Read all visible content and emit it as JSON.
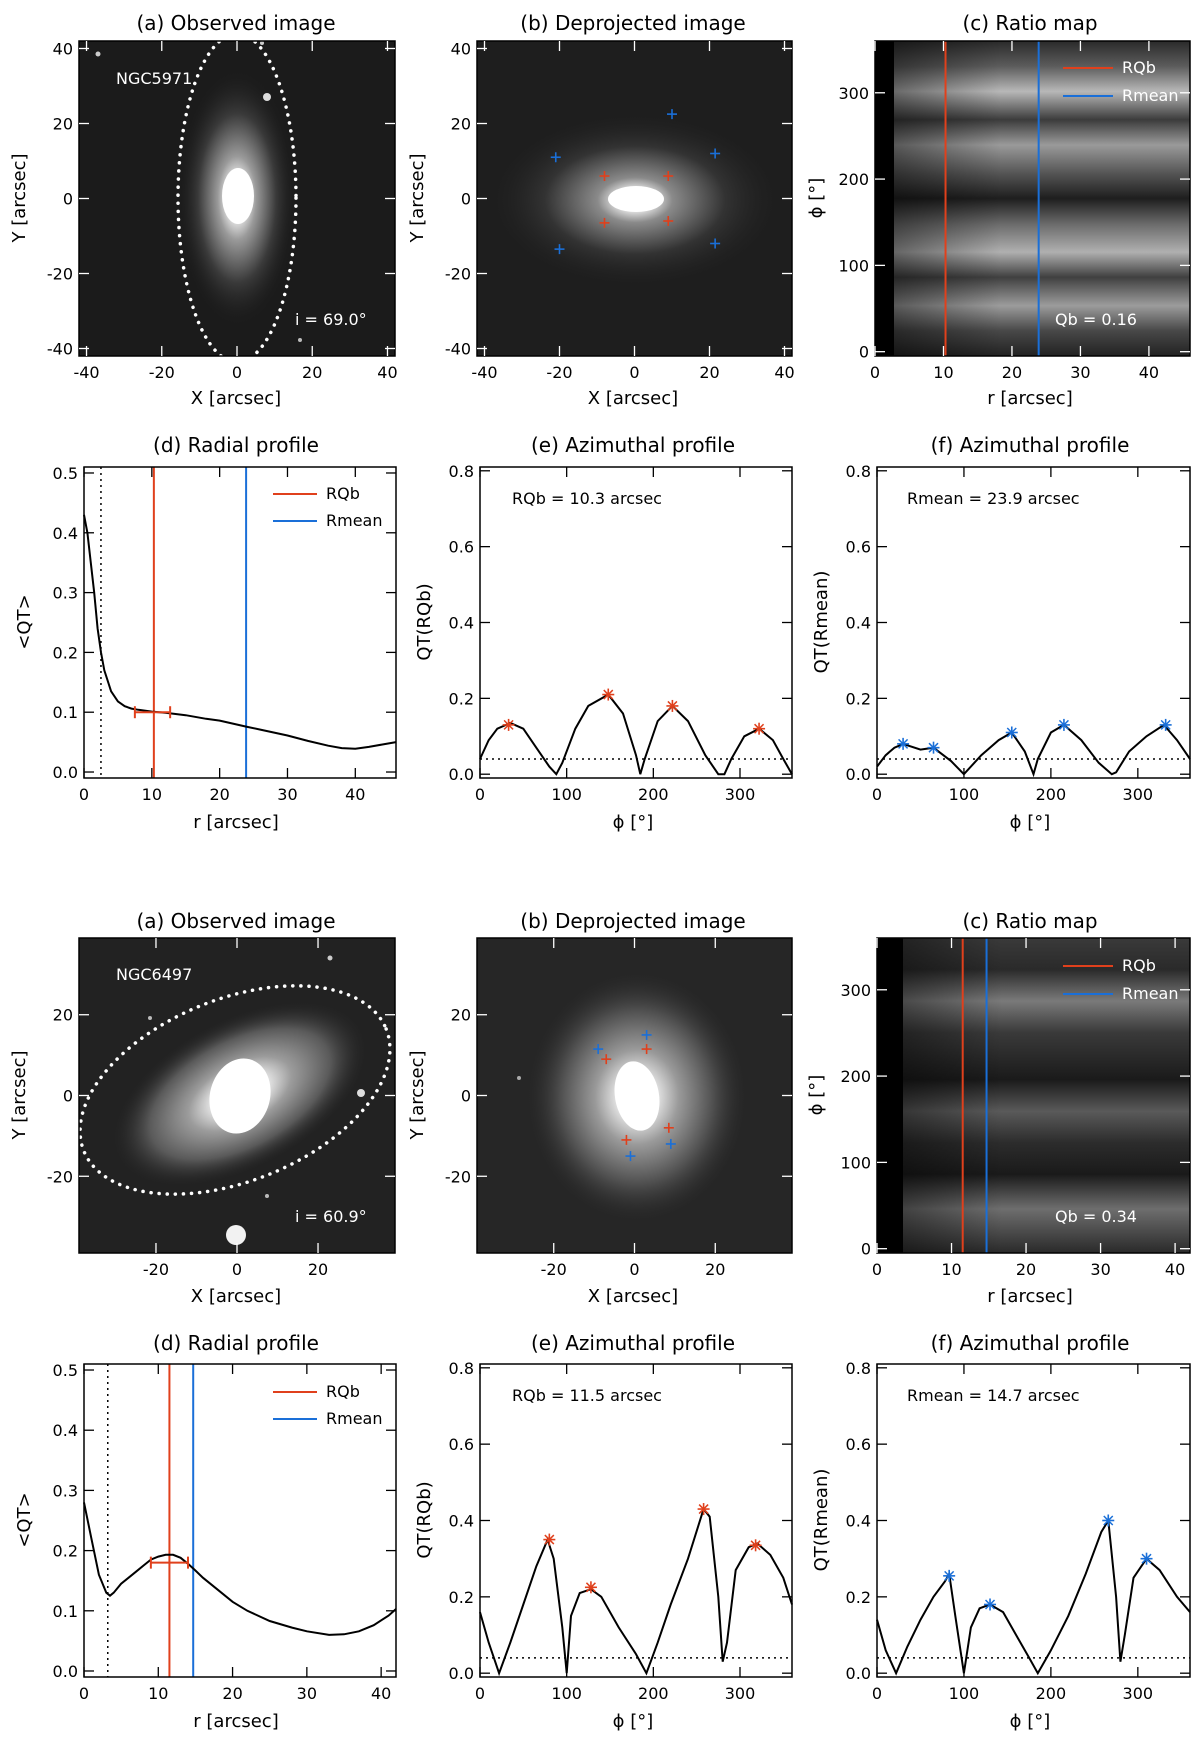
{
  "colors": {
    "rqb": "#e0401c",
    "rmean": "#1a6fd8",
    "line": "#000000"
  },
  "labels": {
    "x_arcsec": "X [arcsec]",
    "y_arcsec": "Y [arcsec]",
    "r_arcsec": "r [arcsec]",
    "phi_deg": "ϕ [°]",
    "qt_mean": "<QT>",
    "qt_rqb": "QT(RQb)",
    "qt_rmean": "QT(Rmean)",
    "legend_rqb": "RQb",
    "legend_rmean": "Rmean"
  },
  "chart_data": [
    {
      "galaxy": "NGC5971",
      "inclination_text": "i =   69.0°",
      "qb_text": "Qb =   0.16",
      "rqb_text": "RQb = 10.3 arcsec",
      "rmean_text": "Rmean = 23.9 arcsec",
      "panels": {
        "a": {
          "title": "(a) Observed image",
          "type": "heatmap",
          "xlim": [
            -42,
            42
          ],
          "ylim": [
            -42,
            42
          ],
          "xticks": [
            -40,
            -20,
            0,
            20,
            40
          ],
          "yticks": [
            -40,
            -20,
            0,
            20,
            40
          ]
        },
        "b": {
          "title": "(b) Deprojected image",
          "type": "heatmap",
          "xlim": [
            -42,
            42
          ],
          "ylim": [
            -42,
            42
          ],
          "xticks": [
            -40,
            -20,
            0,
            20,
            40
          ],
          "yticks": [
            -40,
            -20,
            0,
            20,
            40
          ],
          "red_markers": [
            [
              -8,
              6
            ],
            [
              9,
              6
            ],
            [
              -8,
              -6.5
            ],
            [
              9,
              -6
            ]
          ],
          "blue_markers": [
            [
              10,
              22.5
            ],
            [
              21.5,
              12
            ],
            [
              -21,
              11
            ],
            [
              -20,
              -13.5
            ],
            [
              21.5,
              -12
            ]
          ]
        },
        "c": {
          "title": "(c) Ratio map",
          "type": "heatmap",
          "xlim": [
            0,
            46
          ],
          "ylim": [
            -5,
            360
          ],
          "xticks": [
            0,
            10,
            20,
            30,
            40
          ],
          "yticks": [
            0,
            100,
            200,
            300
          ],
          "rqb": 10.3,
          "rmean": 23.9
        },
        "d": {
          "title": "(d) Radial profile",
          "type": "line",
          "xlim": [
            0,
            46
          ],
          "ylim": [
            -0.01,
            0.51
          ],
          "xticks": [
            0,
            10,
            20,
            30,
            40
          ],
          "yticks": [
            0.0,
            0.1,
            0.2,
            0.3,
            0.4,
            0.5
          ],
          "x": [
            0,
            0.5,
            1,
            1.5,
            2,
            2.5,
            3,
            4,
            5,
            6,
            7,
            8,
            10,
            12,
            15,
            18,
            20,
            23.9,
            26,
            30,
            33,
            36,
            38,
            40,
            42,
            44,
            46
          ],
          "y": [
            0.43,
            0.4,
            0.35,
            0.3,
            0.24,
            0.2,
            0.17,
            0.135,
            0.118,
            0.11,
            0.106,
            0.104,
            0.101,
            0.099,
            0.095,
            0.089,
            0.086,
            0.076,
            0.071,
            0.061,
            0.052,
            0.044,
            0.04,
            0.039,
            0.042,
            0.046,
            0.05
          ],
          "dotted_x": 2.5,
          "rqb": 10.3,
          "rmean": 23.9,
          "errbar": {
            "x1": 7.5,
            "x2": 12.7,
            "y": 0.1
          }
        },
        "e": {
          "title": "(e) Azimuthal profile",
          "type": "line",
          "xlim": [
            0,
            360
          ],
          "ylim": [
            -0.01,
            0.81
          ],
          "xticks": [
            0,
            100,
            200,
            300
          ],
          "yticks": [
            0.0,
            0.2,
            0.4,
            0.6,
            0.8
          ],
          "x": [
            0,
            10,
            20,
            35,
            50,
            65,
            80,
            88,
            95,
            110,
            125,
            148,
            165,
            180,
            185,
            190,
            205,
            222,
            240,
            260,
            275,
            282,
            290,
            305,
            322,
            338,
            350,
            360
          ],
          "y": [
            0.04,
            0.09,
            0.12,
            0.135,
            0.12,
            0.07,
            0.02,
            0.0,
            0.03,
            0.12,
            0.18,
            0.21,
            0.16,
            0.05,
            0.0,
            0.04,
            0.14,
            0.18,
            0.14,
            0.05,
            0.0,
            0.0,
            0.04,
            0.1,
            0.12,
            0.09,
            0.04,
            0.0
          ],
          "peaks_x": [
            33,
            148,
            222,
            322
          ],
          "peaks_y": [
            0.13,
            0.21,
            0.18,
            0.12
          ],
          "threshold": 0.04
        },
        "f": {
          "title": "(f) Azimuthal profile",
          "type": "line",
          "xlim": [
            0,
            360
          ],
          "ylim": [
            -0.01,
            0.81
          ],
          "xticks": [
            0,
            100,
            200,
            300
          ],
          "yticks": [
            0.0,
            0.2,
            0.4,
            0.6,
            0.8
          ],
          "x": [
            0,
            10,
            20,
            30,
            50,
            65,
            85,
            100,
            120,
            140,
            155,
            170,
            180,
            185,
            200,
            215,
            235,
            255,
            270,
            275,
            290,
            310,
            330,
            345,
            360
          ],
          "y": [
            0.02,
            0.05,
            0.07,
            0.08,
            0.065,
            0.07,
            0.035,
            0.0,
            0.05,
            0.09,
            0.11,
            0.06,
            0.0,
            0.04,
            0.11,
            0.13,
            0.09,
            0.03,
            0.0,
            0.005,
            0.06,
            0.1,
            0.13,
            0.09,
            0.04
          ],
          "peaks_x": [
            30,
            65,
            155,
            215,
            332
          ],
          "peaks_y": [
            0.08,
            0.07,
            0.11,
            0.13,
            0.13
          ],
          "threshold": 0.04
        }
      }
    },
    {
      "galaxy": "NGC6497",
      "inclination_text": "i =   60.9°",
      "qb_text": "Qb =   0.34",
      "rqb_text": "RQb = 11.5 arcsec",
      "rmean_text": "Rmean = 14.7 arcsec",
      "panels": {
        "a": {
          "title": "(a) Observed image",
          "type": "heatmap",
          "xlim": [
            -39,
            39
          ],
          "ylim": [
            -39,
            39
          ],
          "xticks": [
            -20,
            0,
            20
          ],
          "yticks": [
            -20,
            0,
            20
          ]
        },
        "b": {
          "title": "(b) Deprojected image",
          "type": "heatmap",
          "xlim": [
            -39,
            39
          ],
          "ylim": [
            -39,
            39
          ],
          "xticks": [
            -20,
            0,
            20
          ],
          "yticks": [
            -20,
            0,
            20
          ],
          "red_markers": [
            [
              -7,
              9
            ],
            [
              3,
              11.5
            ],
            [
              -2,
              -11
            ],
            [
              8.5,
              -8
            ]
          ],
          "blue_markers": [
            [
              -9,
              11.5
            ],
            [
              3,
              15
            ],
            [
              -1,
              -15
            ],
            [
              9,
              -12
            ]
          ]
        },
        "c": {
          "title": "(c) Ratio map",
          "type": "heatmap",
          "xlim": [
            0,
            42
          ],
          "ylim": [
            -5,
            360
          ],
          "xticks": [
            0,
            10,
            20,
            30,
            40
          ],
          "yticks": [
            0,
            100,
            200,
            300
          ],
          "rqb": 11.5,
          "rmean": 14.7
        },
        "d": {
          "title": "(d) Radial profile",
          "type": "line",
          "xlim": [
            0,
            42
          ],
          "ylim": [
            -0.01,
            0.51
          ],
          "xticks": [
            0,
            10,
            20,
            30,
            40
          ],
          "yticks": [
            0.0,
            0.1,
            0.2,
            0.3,
            0.4,
            0.5
          ],
          "x": [
            0,
            1,
            2,
            3,
            3.5,
            4,
            5,
            6,
            7,
            8,
            9,
            10,
            11,
            12,
            13,
            14,
            15,
            16,
            18,
            20,
            22,
            25,
            28,
            30,
            33,
            35,
            37,
            39,
            41,
            42
          ],
          "y": [
            0.28,
            0.22,
            0.16,
            0.13,
            0.125,
            0.13,
            0.145,
            0.155,
            0.165,
            0.175,
            0.185,
            0.19,
            0.193,
            0.193,
            0.188,
            0.178,
            0.167,
            0.155,
            0.135,
            0.115,
            0.1,
            0.083,
            0.072,
            0.066,
            0.06,
            0.061,
            0.066,
            0.076,
            0.092,
            0.103
          ],
          "dotted_x": 3.2,
          "rqb": 11.5,
          "rmean": 14.7,
          "errbar": {
            "x1": 9.0,
            "x2": 14.0,
            "y": 0.18
          }
        },
        "e": {
          "title": "(e) Azimuthal profile",
          "type": "line",
          "xlim": [
            0,
            360
          ],
          "ylim": [
            -0.01,
            0.81
          ],
          "xticks": [
            0,
            100,
            200,
            300
          ],
          "yticks": [
            0.0,
            0.2,
            0.4,
            0.6,
            0.8
          ],
          "x": [
            0,
            10,
            22,
            35,
            50,
            65,
            78,
            85,
            95,
            100,
            105,
            115,
            128,
            140,
            160,
            180,
            192,
            205,
            220,
            240,
            258,
            265,
            275,
            280,
            285,
            295,
            310,
            320,
            335,
            350,
            360
          ],
          "y": [
            0.16,
            0.08,
            0.0,
            0.08,
            0.18,
            0.28,
            0.35,
            0.3,
            0.12,
            0.0,
            0.15,
            0.21,
            0.22,
            0.2,
            0.12,
            0.05,
            0.0,
            0.08,
            0.18,
            0.3,
            0.43,
            0.41,
            0.2,
            0.03,
            0.08,
            0.27,
            0.33,
            0.34,
            0.31,
            0.25,
            0.18
          ],
          "peaks_x": [
            80,
            128,
            258,
            318
          ],
          "peaks_y": [
            0.35,
            0.225,
            0.43,
            0.335
          ],
          "threshold": 0.04
        },
        "f": {
          "title": "(f) Azimuthal profile",
          "type": "line",
          "xlim": [
            0,
            360
          ],
          "ylim": [
            -0.01,
            0.81
          ],
          "xticks": [
            0,
            100,
            200,
            300
          ],
          "yticks": [
            0.0,
            0.2,
            0.4,
            0.6,
            0.8
          ],
          "x": [
            0,
            10,
            22,
            35,
            50,
            65,
            78,
            83,
            90,
            100,
            108,
            118,
            130,
            145,
            160,
            175,
            185,
            200,
            220,
            240,
            258,
            266,
            275,
            280,
            285,
            295,
            310,
            325,
            345,
            360
          ],
          "y": [
            0.14,
            0.06,
            0.0,
            0.07,
            0.14,
            0.2,
            0.24,
            0.26,
            0.15,
            0.0,
            0.12,
            0.17,
            0.18,
            0.16,
            0.1,
            0.04,
            0.0,
            0.06,
            0.15,
            0.26,
            0.37,
            0.4,
            0.2,
            0.03,
            0.1,
            0.25,
            0.3,
            0.27,
            0.2,
            0.16
          ],
          "peaks_x": [
            83,
            130,
            266,
            310
          ],
          "peaks_y": [
            0.255,
            0.18,
            0.4,
            0.3
          ],
          "threshold": 0.04
        }
      }
    }
  ]
}
